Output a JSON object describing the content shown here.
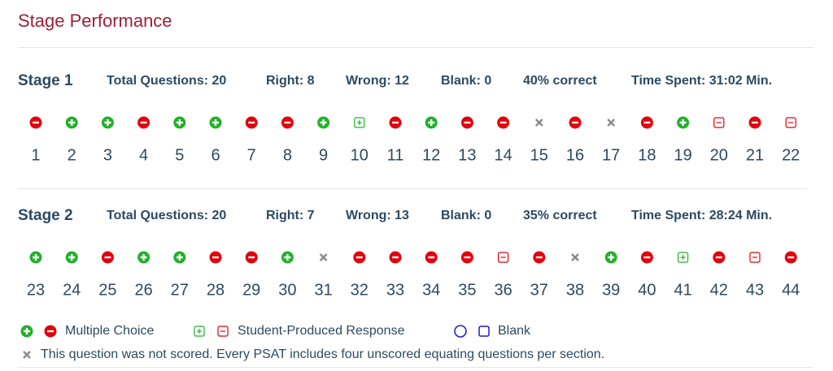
{
  "title": "Stage Performance",
  "stages": [
    {
      "name": "Stage 1",
      "stats": [
        "Total Questions: 20",
        "Right: 8",
        "Wrong: 12",
        "Blank: 0",
        "40% correct",
        "Time Spent: 31:02 Min."
      ],
      "numbers": [
        1,
        2,
        3,
        4,
        5,
        6,
        7,
        8,
        9,
        10,
        11,
        12,
        13,
        14,
        15,
        16,
        17,
        18,
        19,
        20,
        21,
        22
      ],
      "results": [
        "mc-wrong",
        "mc-right",
        "mc-right",
        "mc-wrong",
        "mc-right",
        "mc-right",
        "mc-wrong",
        "mc-wrong",
        "mc-right",
        "spr-right",
        "mc-wrong",
        "mc-right",
        "mc-wrong",
        "mc-wrong",
        "unscored",
        "mc-wrong",
        "unscored",
        "mc-wrong",
        "mc-right",
        "spr-wrong",
        "mc-wrong",
        "spr-wrong"
      ]
    },
    {
      "name": "Stage 2",
      "stats": [
        "Total Questions: 20",
        "Right: 7",
        "Wrong: 13",
        "Blank: 0",
        "35% correct",
        "Time Spent: 28:24 Min."
      ],
      "numbers": [
        23,
        24,
        25,
        26,
        27,
        28,
        29,
        30,
        31,
        32,
        33,
        34,
        35,
        36,
        37,
        38,
        39,
        40,
        41,
        42,
        43,
        44
      ],
      "results": [
        "mc-right",
        "mc-right",
        "mc-wrong",
        "mc-right",
        "mc-right",
        "mc-wrong",
        "mc-wrong",
        "mc-right",
        "unscored",
        "mc-wrong",
        "mc-wrong",
        "mc-wrong",
        "mc-wrong",
        "spr-wrong",
        "mc-wrong",
        "unscored",
        "mc-right",
        "mc-wrong",
        "spr-right",
        "mc-wrong",
        "spr-wrong",
        "mc-wrong"
      ]
    }
  ],
  "legend": {
    "items": [
      "Multiple Choice",
      "Student-Produced Response",
      "Blank"
    ],
    "note": "This question was not scored. Every PSAT includes four unscored equating questions per section."
  }
}
